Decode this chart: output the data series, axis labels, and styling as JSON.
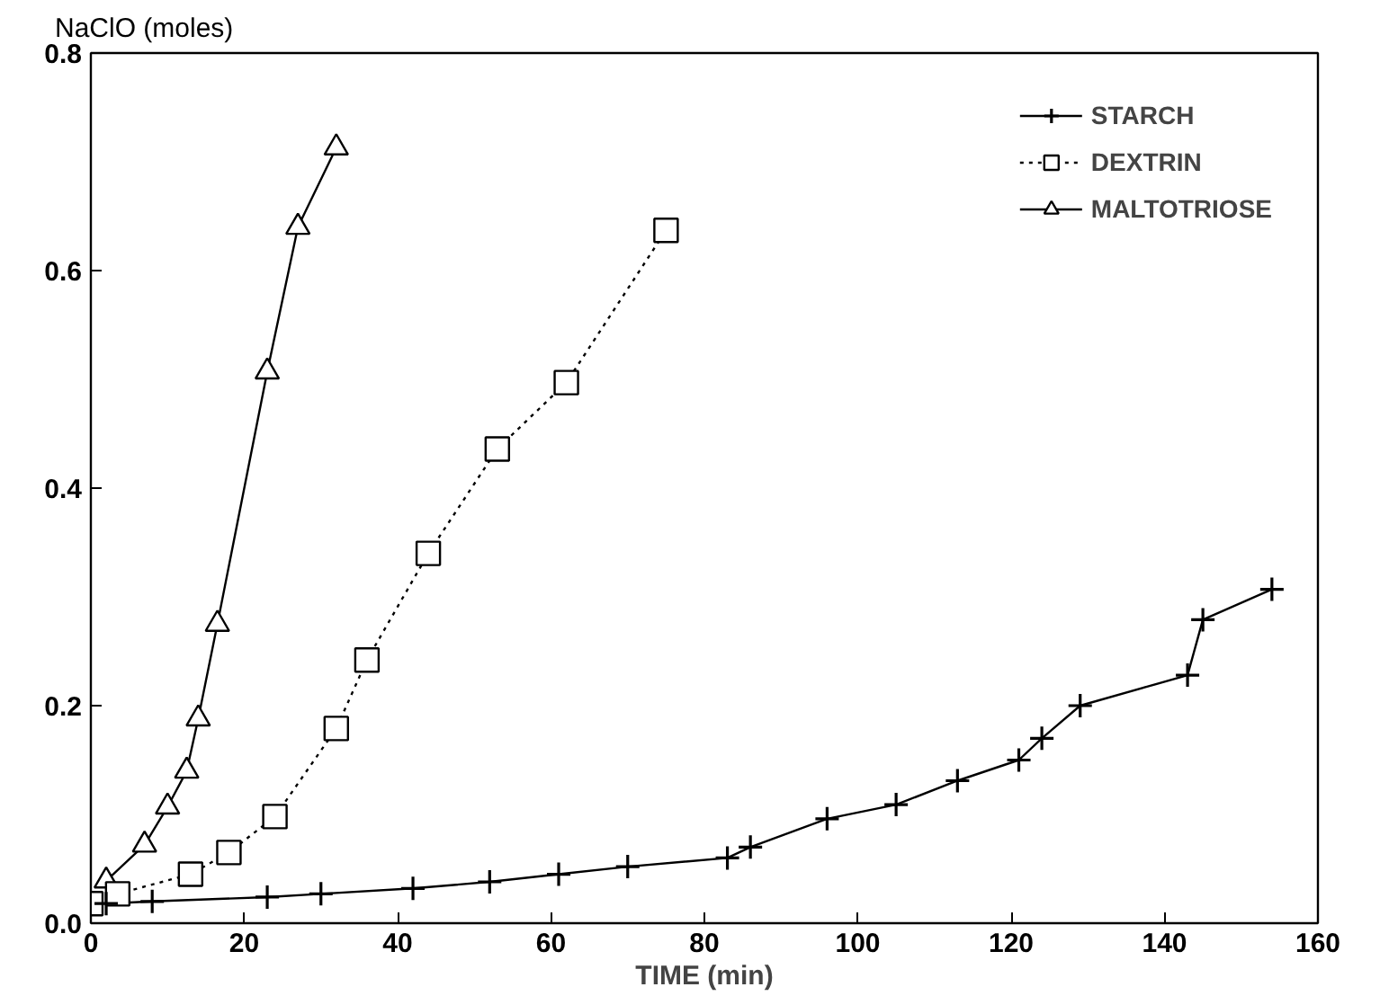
{
  "chart_data": {
    "type": "line",
    "xlabel": "TIME (min)",
    "ylabel": "NaClO (moles)",
    "xlim": [
      0,
      160
    ],
    "xticks": [
      0,
      20,
      40,
      60,
      80,
      100,
      120,
      140,
      160
    ],
    "ylim": [
      0,
      0.8
    ],
    "yticks": [
      {
        "value": 0,
        "label": "0.0"
      },
      {
        "value": 0.2,
        "label": "0.2"
      },
      {
        "value": 0.4,
        "label": "0.4"
      },
      {
        "value": 0.6,
        "label": "0.6"
      },
      {
        "value": 0.8,
        "label": "0.8"
      }
    ],
    "grid": false,
    "legend": "top right",
    "series": [
      {
        "name": "STARCH",
        "color": "#000000",
        "marker": "cross",
        "line_style": "solid",
        "x": [
          2,
          8,
          23,
          30,
          42,
          52,
          61,
          70,
          83,
          86,
          96,
          105,
          113,
          121,
          124,
          129,
          143,
          145,
          154
        ],
        "values": [
          0.018,
          0.02,
          0.024,
          0.027,
          0.032,
          0.038,
          0.045,
          0.052,
          0.06,
          0.07,
          0.096,
          0.109,
          0.131,
          0.15,
          0.17,
          0.2,
          0.228,
          0.279,
          0.307
        ]
      },
      {
        "name": "DEXTRIN",
        "color": "#000000",
        "marker": "square",
        "line_style": "dotted",
        "x": [
          0,
          3.5,
          13,
          18,
          24,
          32,
          36,
          44,
          53,
          62,
          75
        ],
        "values": [
          0.018,
          0.027,
          0.045,
          0.065,
          0.098,
          0.179,
          0.242,
          0.34,
          0.436,
          0.497,
          0.637
        ]
      },
      {
        "name": "MALTOTRIOSE",
        "color": "#000000",
        "marker": "triangle",
        "line_style": "solid",
        "x": [
          2,
          7,
          10,
          12.5,
          14,
          16.5,
          23,
          27,
          32
        ],
        "values": [
          0.039,
          0.072,
          0.107,
          0.14,
          0.188,
          0.275,
          0.507,
          0.64,
          0.713
        ]
      }
    ]
  }
}
